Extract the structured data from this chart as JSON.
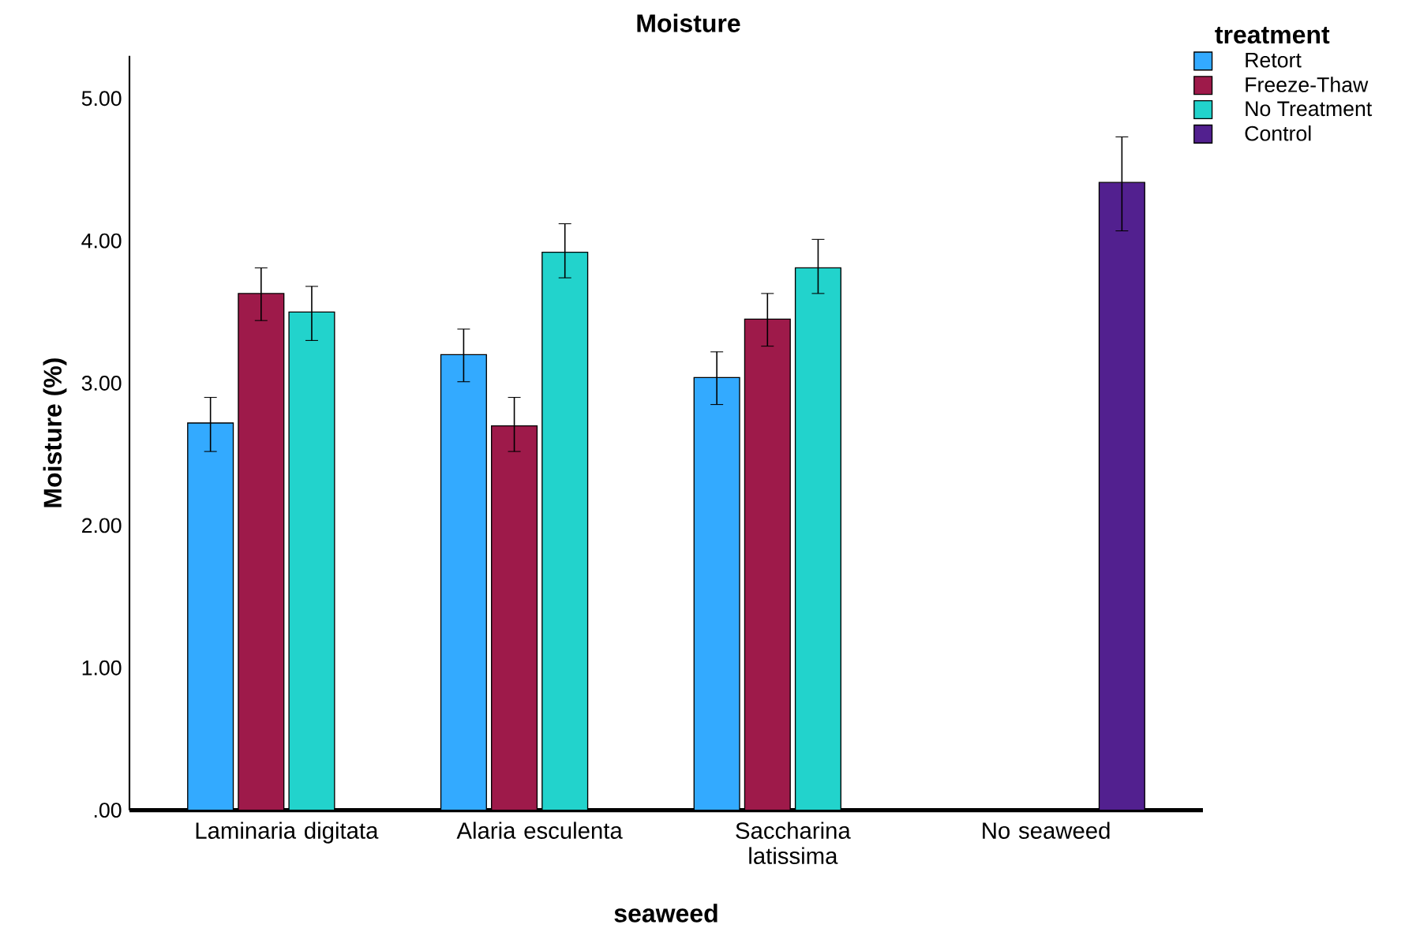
{
  "chart_data": {
    "type": "bar",
    "title": "Moisture",
    "xlabel": "seaweed",
    "ylabel": "Moisture (%)",
    "legend_title": "treatment",
    "categories": [
      "Laminaria digitata",
      "Alaria esculenta",
      "Saccharina latissima",
      "No seaweed"
    ],
    "series": [
      {
        "name": "Retort",
        "color": "#33aaff",
        "values": [
          2.72,
          3.2,
          3.04,
          null
        ],
        "errors": [
          [
            2.52,
            2.9
          ],
          [
            3.01,
            3.38
          ],
          [
            2.85,
            3.22
          ],
          null
        ]
      },
      {
        "name": "Freeze-Thaw",
        "color": "#9e1a4a",
        "values": [
          3.63,
          2.7,
          3.45,
          null
        ],
        "errors": [
          [
            3.44,
            3.81
          ],
          [
            2.52,
            2.9
          ],
          [
            3.26,
            3.63
          ],
          null
        ]
      },
      {
        "name": "No Treatment",
        "color": "#22d3cc",
        "values": [
          3.5,
          3.92,
          3.81,
          null
        ],
        "errors": [
          [
            3.3,
            3.68
          ],
          [
            3.74,
            4.12
          ],
          [
            3.63,
            4.01
          ],
          null
        ]
      },
      {
        "name": "Control",
        "color": "#52208f",
        "values": [
          null,
          null,
          null,
          4.41
        ],
        "errors": [
          null,
          null,
          null,
          [
            4.07,
            4.73
          ]
        ]
      }
    ],
    "ylim": [
      0,
      5.3
    ],
    "yticks": [
      {
        "value": 0,
        "label": ".00"
      },
      {
        "value": 1,
        "label": "1.00"
      },
      {
        "value": 2,
        "label": "2.00"
      },
      {
        "value": 3,
        "label": "3.00"
      },
      {
        "value": 4,
        "label": "4.00"
      },
      {
        "value": 5,
        "label": "5.00"
      }
    ],
    "grid": false,
    "legend": "top right"
  }
}
